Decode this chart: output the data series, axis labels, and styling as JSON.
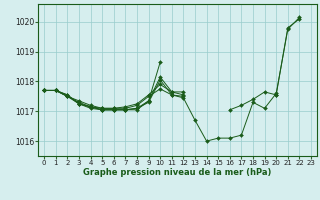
{
  "title": "Graphe pression niveau de la mer (hPa)",
  "background_color": "#d6eeee",
  "grid_color": "#99cccc",
  "line_color": "#1a5c1a",
  "marker_color": "#1a5c1a",
  "xlim": [
    -0.5,
    23.5
  ],
  "ylim": [
    1015.5,
    1020.6
  ],
  "xticks": [
    0,
    1,
    2,
    3,
    4,
    5,
    6,
    7,
    8,
    9,
    10,
    11,
    12,
    13,
    14,
    15,
    16,
    17,
    18,
    19,
    20,
    21,
    22,
    23
  ],
  "yticks": [
    1016,
    1017,
    1018,
    1019,
    1020
  ],
  "series": [
    [
      1017.7,
      1017.7,
      1017.5,
      1017.35,
      1017.2,
      1017.1,
      1017.1,
      1017.1,
      1017.2,
      1017.5,
      1017.75,
      1017.55,
      1017.45,
      1016.7,
      1016.0,
      1016.1,
      1016.1,
      1016.2,
      1017.3,
      1017.1,
      1017.6,
      1019.75,
      1020.15,
      null
    ],
    [
      1017.7,
      1017.7,
      1017.5,
      1017.3,
      1017.15,
      1017.1,
      1017.1,
      1017.15,
      1017.25,
      1017.55,
      1017.9,
      1017.65,
      1017.65,
      null,
      null,
      null,
      null,
      null,
      null,
      null,
      null,
      null,
      null,
      null
    ],
    [
      1017.7,
      1017.7,
      null,
      null,
      null,
      null,
      null,
      null,
      null,
      null,
      null,
      null,
      null,
      null,
      null,
      null,
      null,
      null,
      null,
      null,
      null,
      null,
      null,
      null
    ],
    [
      1017.7,
      1017.7,
      1017.5,
      1017.25,
      1017.1,
      1017.05,
      1017.05,
      1017.05,
      1017.1,
      1017.35,
      1018.15,
      1017.65,
      1017.55,
      null,
      null,
      null,
      1017.05,
      1017.2,
      1017.4,
      1017.65,
      1017.55,
      null,
      null,
      null
    ],
    [
      1017.7,
      1017.7,
      1017.55,
      1017.25,
      1017.15,
      1017.05,
      1017.05,
      1017.05,
      1017.05,
      1017.35,
      1018.65,
      null,
      null,
      null,
      null,
      null,
      null,
      null,
      null,
      null,
      null,
      null,
      null,
      null
    ],
    [
      1017.7,
      1017.7,
      1017.55,
      1017.25,
      1017.15,
      1017.05,
      1017.05,
      1017.05,
      1017.1,
      1017.3,
      1018.05,
      1017.55,
      1017.5,
      null,
      null,
      null,
      null,
      null,
      null,
      null,
      1017.55,
      1019.8,
      1020.1,
      null
    ]
  ]
}
